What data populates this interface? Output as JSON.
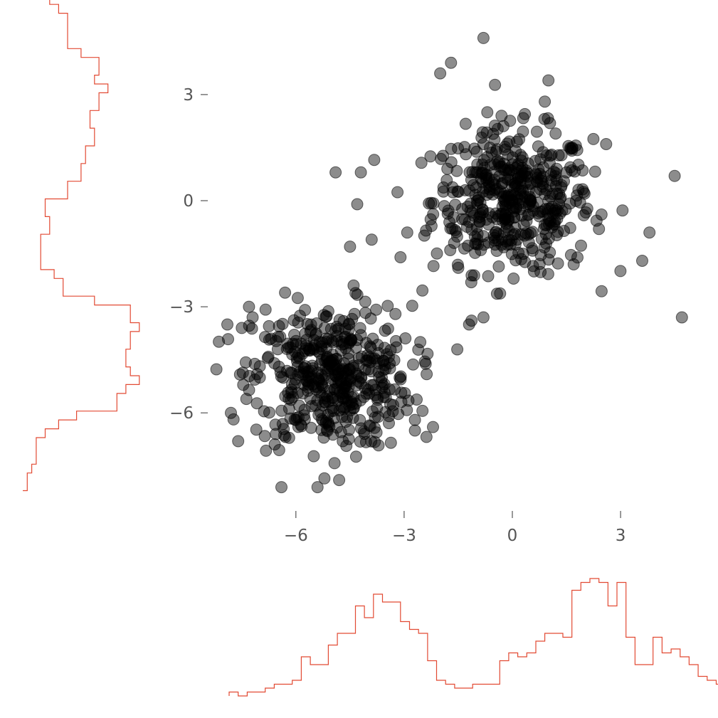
{
  "chart_data": [
    {
      "id": "scatter",
      "type": "scatter",
      "title": "",
      "xlabel": "",
      "ylabel": "",
      "xlim": [
        -8.0,
        5.0
      ],
      "ylim": [
        -8.2,
        4.8
      ],
      "grid": false,
      "x_ticks": [
        -6,
        -3,
        0,
        3
      ],
      "y_ticks": [
        3,
        0,
        -3,
        -6
      ],
      "x_tick_labels": [
        "−6",
        "−3",
        "0",
        "3"
      ],
      "y_tick_labels": [
        "3",
        "0",
        "−3",
        "−6"
      ],
      "marker_color": "#000000",
      "marker_alpha": 0.45,
      "clusters": [
        {
          "center": [
            0.0,
            0.0
          ],
          "n": 450
        },
        {
          "center": [
            -5.0,
            -5.0
          ],
          "n": 450
        }
      ],
      "outliers": [
        [
          -0.8,
          4.6
        ],
        [
          -1.7,
          3.9
        ],
        [
          -2.0,
          3.6
        ],
        [
          1.0,
          3.4
        ],
        [
          4.7,
          -3.3
        ],
        [
          3.6,
          -1.7
        ],
        [
          4.5,
          0.7
        ],
        [
          3.8,
          -0.9
        ],
        [
          -4.2,
          0.8
        ],
        [
          -4.9,
          0.8
        ],
        [
          -4.3,
          -0.1
        ],
        [
          -4.5,
          -1.3
        ],
        [
          -3.9,
          -1.1
        ],
        [
          -1.2,
          -3.5
        ],
        [
          -0.8,
          -3.3
        ],
        [
          -2.2,
          -6.4
        ],
        [
          -2.7,
          -6.5
        ],
        [
          -2.7,
          -6.2
        ],
        [
          -6.4,
          -8.1
        ],
        [
          -5.4,
          -8.1
        ],
        [
          -4.8,
          -7.9
        ],
        [
          -7.6,
          -6.8
        ],
        [
          -7.8,
          -6.0
        ],
        [
          -7.9,
          -3.5
        ],
        [
          -7.5,
          -3.6
        ],
        [
          -7.2,
          -3.3
        ],
        [
          -7.3,
          -3.0
        ],
        [
          -6.3,
          -2.6
        ],
        [
          -4.4,
          -2.4
        ],
        [
          -3.1,
          -1.6
        ]
      ],
      "points": [
        [
          -7.0,
          -5.0
        ],
        [
          -6.5,
          -4.2
        ],
        [
          -5.0,
          -4.5
        ],
        [
          -4.2,
          -3.8
        ],
        [
          -3.4,
          -4.6
        ],
        [
          -5.6,
          -5.6
        ],
        [
          -6.0,
          -6.2
        ],
        [
          -4.7,
          -6.8
        ],
        [
          -3.8,
          -5.5
        ],
        [
          -5.2,
          -3.6
        ],
        [
          -6.2,
          -5.6
        ],
        [
          -4.5,
          -5.1
        ],
        [
          0.0,
          0.0
        ],
        [
          0.5,
          0.5
        ],
        [
          -0.5,
          0.3
        ],
        [
          1.0,
          -0.5
        ],
        [
          1.5,
          0.8
        ],
        [
          -1.2,
          -0.6
        ],
        [
          0.3,
          -1.5
        ],
        [
          2.0,
          0.2
        ],
        [
          -0.8,
          1.6
        ],
        [
          1.2,
          1.9
        ],
        [
          0.6,
          -2.0
        ],
        [
          -1.8,
          0.9
        ],
        [
          2.4,
          -0.8
        ],
        [
          -0.3,
          2.4
        ],
        [
          1.7,
          -1.8
        ],
        [
          -1.5,
          -1.9
        ],
        [
          2.6,
          1.6
        ],
        [
          0.9,
          2.8
        ]
      ]
    },
    {
      "id": "x-hist",
      "type": "histogram",
      "orientation": "vertical",
      "color": "#e24a33",
      "bin_start": -7.85,
      "bin_width": 0.25,
      "counts": [
        1,
        0,
        1,
        1,
        2,
        3,
        3,
        4,
        10,
        8,
        8,
        13,
        16,
        16,
        23,
        20,
        26,
        24,
        24,
        19,
        17,
        16,
        9,
        4,
        3,
        2,
        2,
        3,
        3,
        3,
        9,
        11,
        10,
        11,
        14,
        16,
        16,
        15,
        27,
        29,
        30,
        29,
        23,
        29,
        15,
        8,
        8,
        15,
        11,
        12,
        10,
        8,
        5,
        4,
        3,
        3,
        2,
        2,
        1,
        1,
        1,
        0,
        1,
        1
      ]
    },
    {
      "id": "y-hist",
      "type": "histogram",
      "orientation": "horizontal",
      "color": "#e24a33",
      "bin_start": -8.2,
      "bin_width": 0.25,
      "counts": [
        1,
        1,
        2,
        3,
        3,
        3,
        5,
        8,
        12,
        21,
        21,
        23,
        26,
        24,
        23,
        23,
        24,
        24,
        26,
        24,
        24,
        16,
        9,
        9,
        7,
        4,
        4,
        4,
        4,
        6,
        6,
        5,
        5,
        10,
        10,
        13,
        13,
        14,
        14,
        16,
        16,
        15,
        15,
        17,
        17,
        19,
        16,
        17,
        17,
        13,
        10,
        10,
        10,
        10,
        8,
        6,
        6,
        5,
        5,
        3,
        3,
        2,
        2,
        2,
        1,
        1,
        1,
        0,
        0,
        1,
        1
      ]
    }
  ]
}
